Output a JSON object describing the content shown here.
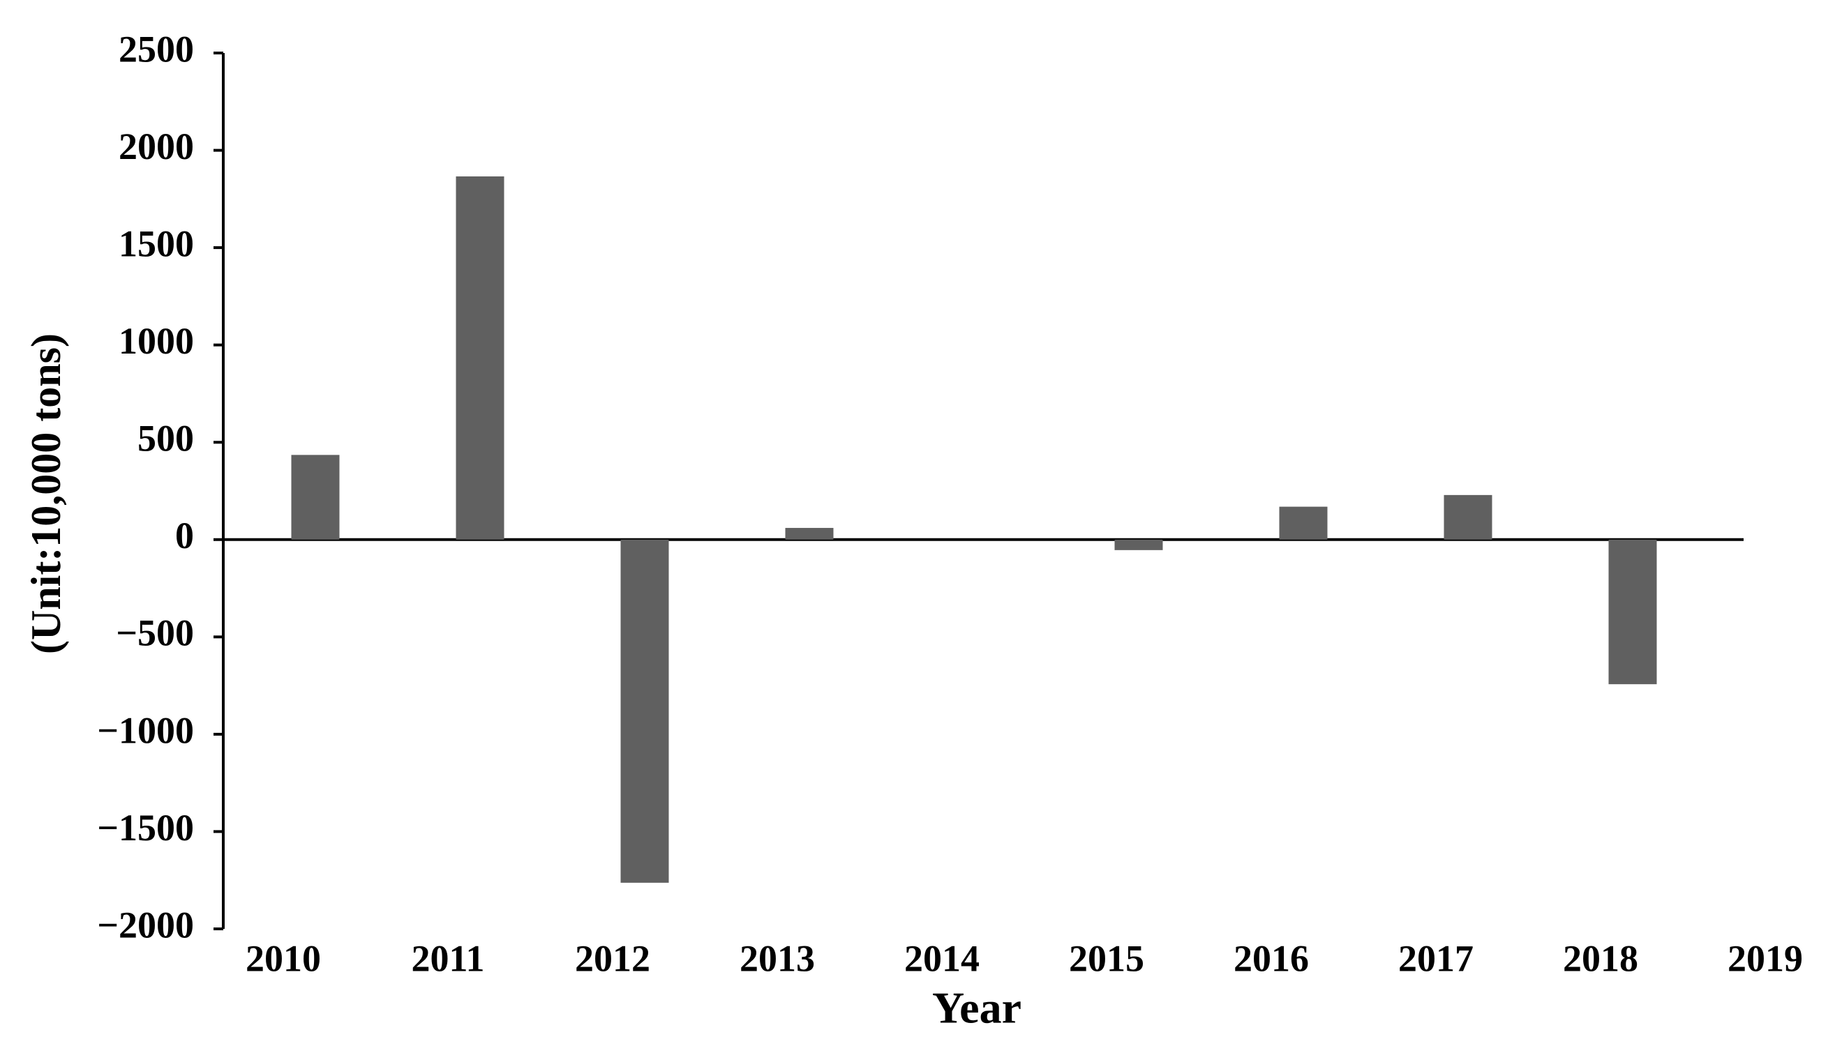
{
  "chart_data": {
    "type": "bar",
    "x_label": "Year",
    "y_label": "(Unit:10,000 tons)",
    "categories": [
      "2010",
      "2011",
      "2012",
      "2013",
      "2014",
      "2015",
      "2016",
      "2017",
      "2018",
      "2019"
    ],
    "values": [
      435,
      1866,
      -1763,
      60,
      0,
      -54,
      169,
      229,
      -743,
      null
    ],
    "color": "#606060",
    "ylim": [
      -2000,
      2500
    ],
    "yticks": [
      {
        "value": -2000,
        "label": "−2000"
      },
      {
        "value": -1500,
        "label": "−1500"
      },
      {
        "value": -1000,
        "label": "−1000"
      },
      {
        "value": -500,
        "label": "−500"
      },
      0,
      500,
      1000,
      1500,
      2000,
      2500
    ],
    "grid": false
  }
}
